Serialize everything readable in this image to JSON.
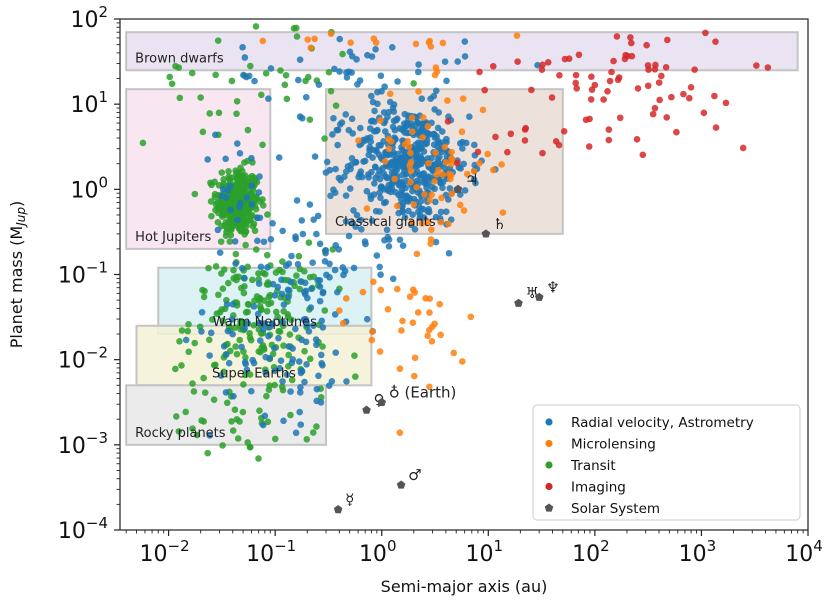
{
  "chart_data": {
    "type": "scatter",
    "xlabel": "Semi-major axis (au)",
    "ylabel_base": "Planet mass (M",
    "ylabel_sub": "Jup",
    "ylabel_end": ")",
    "xscale": "log",
    "yscale": "log",
    "xlim": [
      0.0035,
      10000
    ],
    "ylim": [
      0.0001,
      100
    ],
    "grid": false,
    "legend_position": "lower-right",
    "x_ticks": [
      {
        "value": 0.01,
        "base": "10",
        "exp": "−2"
      },
      {
        "value": 0.1,
        "base": "10",
        "exp": "−1"
      },
      {
        "value": 1,
        "base": "10",
        "exp": "0"
      },
      {
        "value": 10,
        "base": "10",
        "exp": "1"
      },
      {
        "value": 100,
        "base": "10",
        "exp": "2"
      },
      {
        "value": 1000,
        "base": "10",
        "exp": "3"
      },
      {
        "value": 10000,
        "base": "10",
        "exp": "4"
      }
    ],
    "y_ticks": [
      {
        "value": 0.0001,
        "base": "10",
        "exp": "−4"
      },
      {
        "value": 0.001,
        "base": "10",
        "exp": "−3"
      },
      {
        "value": 0.01,
        "base": "10",
        "exp": "−2"
      },
      {
        "value": 0.1,
        "base": "10",
        "exp": "−1"
      },
      {
        "value": 1,
        "base": "10",
        "exp": "0"
      },
      {
        "value": 10,
        "base": "10",
        "exp": "1"
      },
      {
        "value": 100,
        "base": "10",
        "exp": "2"
      }
    ],
    "regions": [
      {
        "label": "Brown dwarfs",
        "x": [
          0.004,
          8000
        ],
        "y": [
          25,
          70
        ],
        "fill": "#e6dff0",
        "label_pos": "lower-left"
      },
      {
        "label": "Hot Jupiters",
        "x": [
          0.004,
          0.09
        ],
        "y": [
          0.2,
          15
        ],
        "fill": "#f7e3ef",
        "label_pos": "lower-left"
      },
      {
        "label": "Classical giants",
        "x": [
          0.3,
          50
        ],
        "y": [
          0.3,
          15
        ],
        "fill": "#eadcd6",
        "label_pos": "lower-left"
      },
      {
        "label": "Warm Neptunes",
        "x": [
          0.008,
          0.8
        ],
        "y": [
          0.02,
          0.12
        ],
        "fill": "#d6f0f2",
        "label_pos": "lower-center"
      },
      {
        "label": "Super Earths",
        "x": [
          0.005,
          0.8
        ],
        "y": [
          0.005,
          0.025
        ],
        "fill": "#f3f1d6",
        "label_pos": "lower-center"
      },
      {
        "label": "Rocky planets",
        "x": [
          0.004,
          0.3
        ],
        "y": [
          0.001,
          0.005
        ],
        "fill": "#e7e7e7",
        "label_pos": "lower-left"
      }
    ],
    "solar_system": [
      {
        "symbol": "☿",
        "x": 0.39,
        "y": 0.000174
      },
      {
        "symbol": "♀",
        "x": 0.72,
        "y": 0.00256
      },
      {
        "symbol": "♁",
        "x": 1.0,
        "y": 0.00315,
        "note": "(Earth)"
      },
      {
        "symbol": "♂",
        "x": 1.52,
        "y": 0.000338
      },
      {
        "symbol": "♃",
        "x": 5.2,
        "y": 1.0
      },
      {
        "symbol": "♄",
        "x": 9.5,
        "y": 0.3
      },
      {
        "symbol": "♅",
        "x": 19.2,
        "y": 0.046
      },
      {
        "symbol": "♆",
        "x": 30.1,
        "y": 0.054
      }
    ],
    "series": [
      {
        "name": "Radial velocity, Astrometry",
        "color": "#1f77b4",
        "clusters": [
          {
            "n": 470,
            "lx": 0.25,
            "sx": 0.28,
            "ly": 0.3,
            "sy": 0.35
          },
          {
            "n": 120,
            "lx": -0.9,
            "sx": 0.35,
            "ly": -1.7,
            "sy": 0.5
          },
          {
            "n": 45,
            "lx": -0.3,
            "sx": 0.55,
            "ly": 1.35,
            "sy": 0.25
          },
          {
            "n": 60,
            "lx": -0.4,
            "sx": 0.4,
            "ly": -0.6,
            "sy": 0.4
          },
          {
            "n": 25,
            "lx": -1.35,
            "sx": 0.2,
            "ly": -0.1,
            "sy": 0.35
          }
        ]
      },
      {
        "name": "Microlensing",
        "color": "#ff7f0e",
        "clusters": [
          {
            "n": 70,
            "lx": 0.45,
            "sx": 0.3,
            "ly": 0.3,
            "sy": 0.45
          },
          {
            "n": 25,
            "lx": 0.3,
            "sx": 0.3,
            "ly": -1.8,
            "sy": 0.45
          },
          {
            "n": 12,
            "lx": 0.1,
            "sx": 0.3,
            "ly": -1.3,
            "sy": 0.3
          },
          {
            "n": 14,
            "lx": 0.3,
            "sx": 0.7,
            "ly": 1.75,
            "sy": 0.05
          }
        ]
      },
      {
        "name": "Transit",
        "color": "#2ca02c",
        "clusters": [
          {
            "n": 340,
            "lx": -1.35,
            "sx": 0.1,
            "ly": -0.15,
            "sy": 0.2
          },
          {
            "n": 180,
            "lx": -1.15,
            "sx": 0.32,
            "ly": -1.5,
            "sy": 0.4
          },
          {
            "n": 45,
            "lx": -1.3,
            "sx": 0.35,
            "ly": -2.6,
            "sy": 0.3
          },
          {
            "n": 45,
            "lx": -1.2,
            "sx": 0.5,
            "ly": 1.3,
            "sy": 0.4
          }
        ]
      },
      {
        "name": "Imaging",
        "color": "#d62728",
        "clusters": [
          {
            "n": 65,
            "lx": 2.25,
            "sx": 0.55,
            "ly": 1.35,
            "sy": 0.3
          },
          {
            "n": 22,
            "lx": 1.7,
            "sx": 0.5,
            "ly": 0.75,
            "sy": 0.3
          }
        ]
      },
      {
        "name": "Solar System",
        "color": "#555555",
        "clusters": []
      }
    ]
  }
}
